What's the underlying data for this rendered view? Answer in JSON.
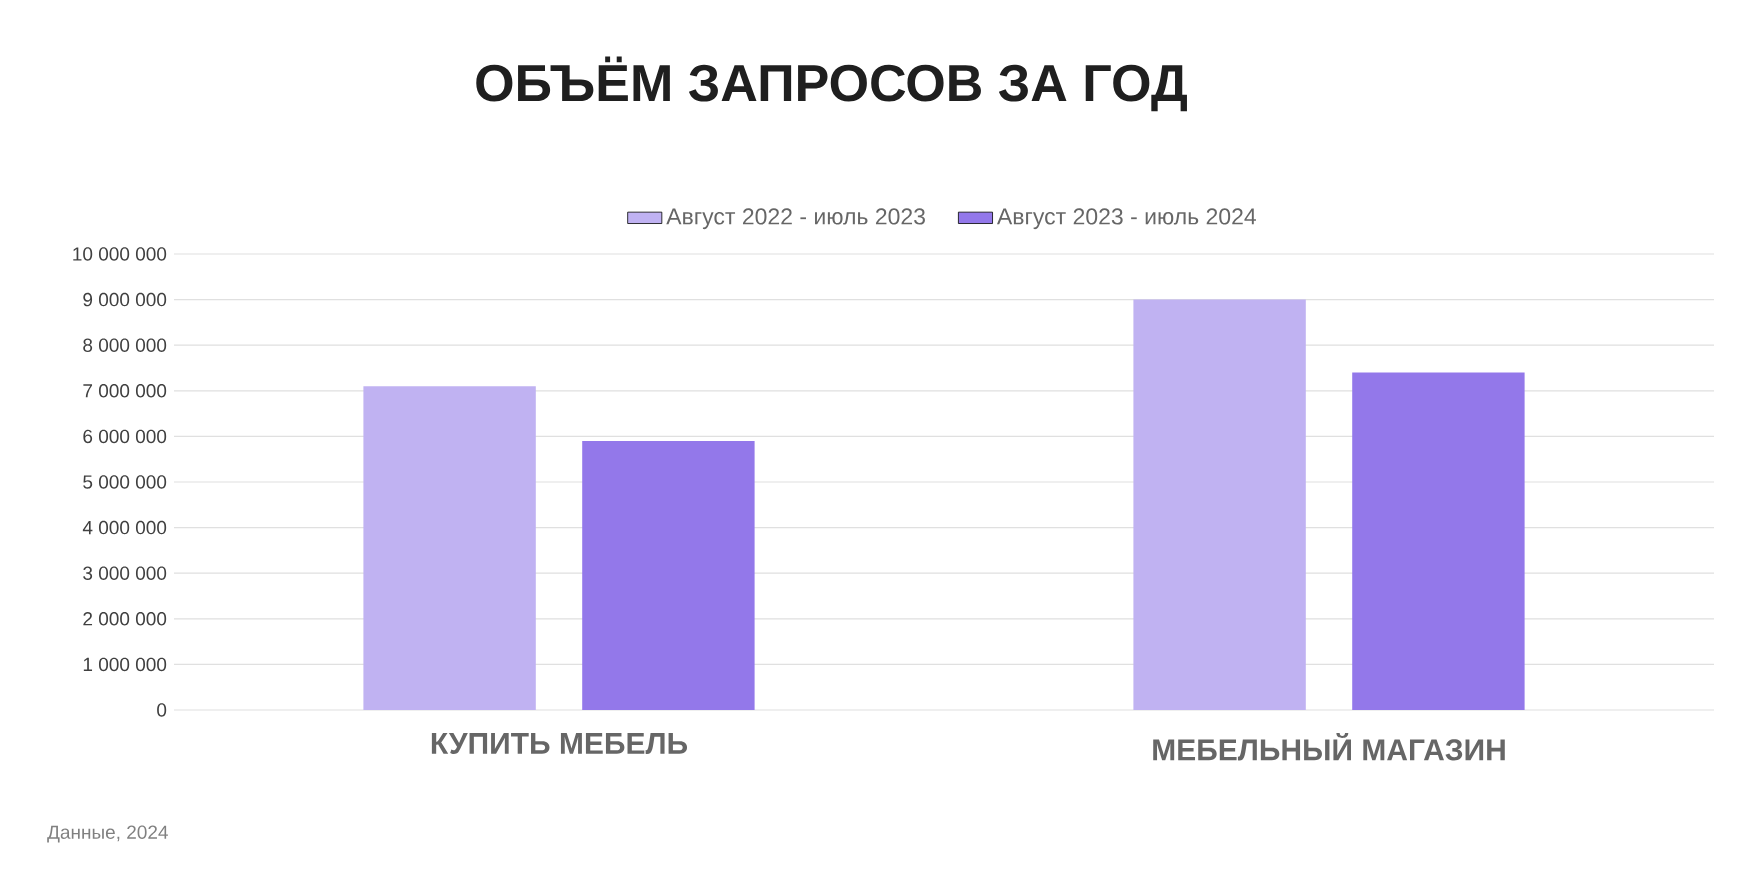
{
  "chart_data": {
    "type": "bar",
    "title": "ОБЪЁМ ЗАПРОСОВ ЗА ГОД",
    "categories": [
      "КУПИТЬ МЕБЕЛЬ",
      "МЕБЕЛЬНЫЙ МАГАЗИН"
    ],
    "series": [
      {
        "name": "Август 2022 - июль 2023",
        "color": "#c0b2f2",
        "values": [
          7100000,
          9000000
        ]
      },
      {
        "name": "Август 2023 - июль 2024",
        "color": "#9378ea",
        "values": [
          5900000,
          7400000
        ]
      }
    ],
    "ylim": [
      0,
      10000000
    ],
    "yticks": [
      0,
      {
        "value": 1000000,
        "label": "1 000 000"
      },
      {
        "value": 2000000,
        "label": "2 000 000"
      },
      {
        "value": 3000000,
        "label": "3 000 000"
      },
      {
        "value": 4000000,
        "label": "4 000 000"
      },
      {
        "value": 5000000,
        "label": "5 000 000"
      },
      {
        "value": 6000000,
        "label": "6 000 000"
      },
      {
        "value": 7000000,
        "label": "7 000 000"
      },
      {
        "value": 8000000,
        "label": "8 000 000"
      },
      {
        "value": 9000000,
        "label": "9 000 000"
      },
      {
        "value": 10000000,
        "label": "10 000 000"
      }
    ],
    "grid": "y",
    "legend": "top",
    "annotations": [
      "Данные, 2024"
    ]
  }
}
